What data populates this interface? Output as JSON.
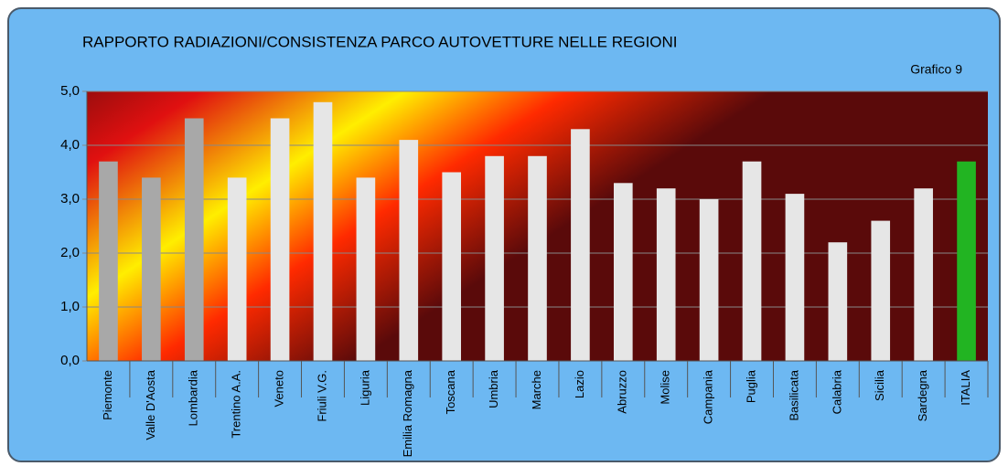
{
  "chart_data": {
    "type": "bar",
    "title": "RAPPORTO RADIAZIONI/CONSISTENZA PARCO AUTOVETTURE NELLE REGIONI",
    "subtitle": "Grafico 9",
    "categories": [
      "Piemonte",
      "Valle D'Aosta",
      "Lombardia",
      "Trentino A.A.",
      "Veneto",
      "Friuli V.G.",
      "Liguria",
      "Emilia Romagna",
      "Toscana",
      "Umbria",
      "Marche",
      "Lazio",
      "Abruzzo",
      "Molise",
      "Campania",
      "Puglia",
      "Basilicata",
      "Calabria",
      "Sicilia",
      "Sardegna",
      "ITALIA"
    ],
    "values": [
      3.7,
      3.4,
      4.5,
      3.4,
      4.5,
      4.8,
      3.4,
      4.1,
      3.5,
      3.8,
      3.8,
      4.3,
      3.3,
      3.2,
      3.0,
      3.7,
      3.1,
      2.2,
      2.6,
      3.2,
      3.7
    ],
    "colors": [
      "#a8a8a8",
      "#a8a8a8",
      "#a8a8a8",
      "#e6e6e6",
      "#e6e6e6",
      "#e6e6e6",
      "#e6e6e6",
      "#e6e6e6",
      "#e6e6e6",
      "#e6e6e6",
      "#e6e6e6",
      "#e6e6e6",
      "#e6e6e6",
      "#e6e6e6",
      "#e6e6e6",
      "#e6e6e6",
      "#e6e6e6",
      "#e6e6e6",
      "#e6e6e6",
      "#e6e6e6",
      "#22b422"
    ],
    "ylim": [
      0,
      5
    ],
    "yticks": [
      {
        "value": 0,
        "label": "0,0"
      },
      {
        "value": 1,
        "label": "1,0"
      },
      {
        "value": 2,
        "label": "2,0"
      },
      {
        "value": 3,
        "label": "3,0"
      },
      {
        "value": 4,
        "label": "4,0"
      },
      {
        "value": 5,
        "label": "5,0"
      }
    ],
    "grid": true
  }
}
